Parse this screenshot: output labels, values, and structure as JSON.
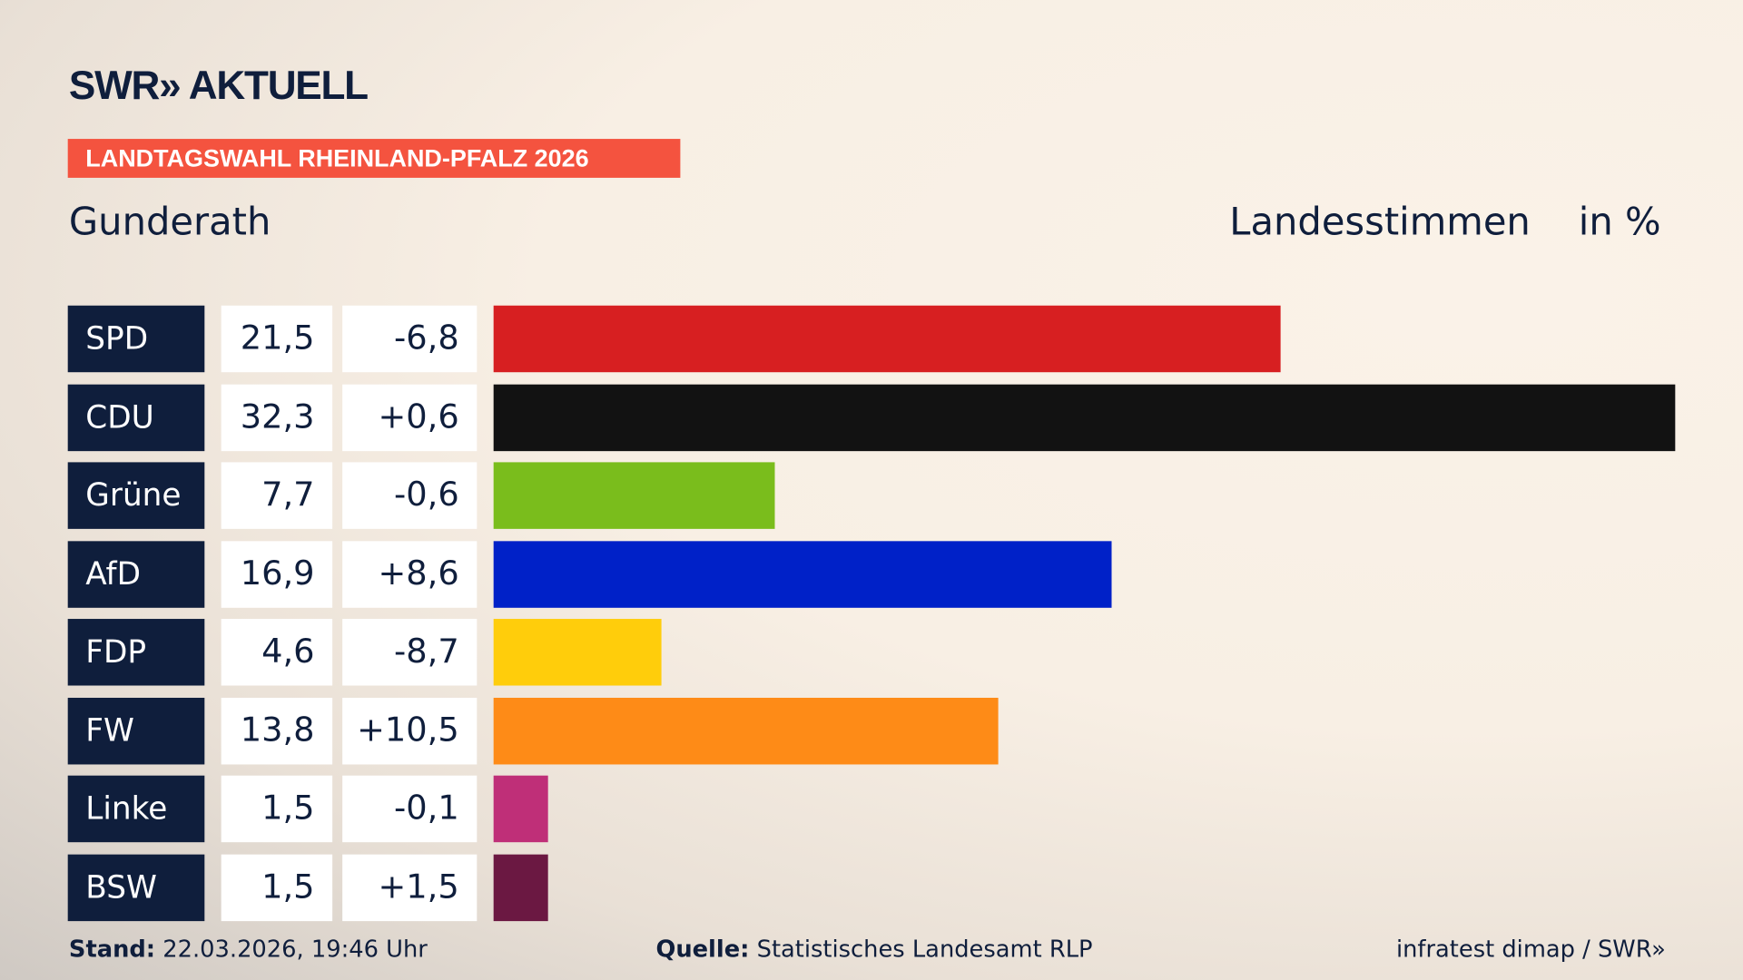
{
  "brand": {
    "logo": "SWR» AKTUELL"
  },
  "badge": "LANDTAGSWAHL RHEINLAND-PFALZ 2026",
  "place": "Gunderath",
  "header": {
    "measure": "Landesstimmen",
    "unit": "in %"
  },
  "chart_data": {
    "type": "bar",
    "orientation": "horizontal",
    "categories": [
      "SPD",
      "CDU",
      "Grüne",
      "AfD",
      "FDP",
      "FW",
      "Linke",
      "BSW"
    ],
    "values": [
      21.5,
      32.3,
      7.7,
      16.9,
      4.6,
      13.8,
      1.5,
      1.5
    ],
    "value_labels": [
      "21,5",
      "32,3",
      "7,7",
      "16,9",
      "4,6",
      "13,8",
      "1,5",
      "1,5"
    ],
    "diff_labels": [
      "-6,8",
      "+0,6",
      "-0,6",
      "+8,6",
      "-8,7",
      "+10,5",
      "-0,1",
      "+1,5"
    ],
    "colors": [
      "#d71f21",
      "#121212",
      "#7abd1c",
      "#0021c8",
      "#ffcd0b",
      "#fe8b17",
      "#bf2f78",
      "#6b1842"
    ],
    "xlim": [
      0,
      32.3
    ]
  },
  "footer": {
    "stand_label": "Stand:",
    "stand": "22.03.2026, 19:46 Uhr",
    "source_label": "Quelle:",
    "source": "Statistisches Landesamt RLP",
    "credit": "infratest dimap / SWR»"
  }
}
